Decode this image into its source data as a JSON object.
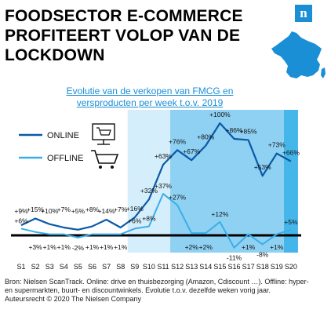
{
  "header": {
    "title_lines": [
      "FOODSECTOR E-COMMERCE",
      "PROFITEERT VOLOP VAN DE",
      "LOCKDOWN"
    ],
    "logo_letter": "n"
  },
  "footer": {
    "lines": [
      "Bron: Nielsen ScanTrack. Online: drive en thuisbezorging (Amazon, Cdiscount …). Offline: hyper-",
      "en supermarkten, buurt- en discountwinkels. Evolutie t.o.v. dezelfde weken vorig jaar.",
      "Auteursrecht © 2020 The Nielsen Company"
    ]
  },
  "chart_data": {
    "type": "line",
    "title_lines": [
      "Evolutie van de verkopen van FMCG en",
      "versproducten per week t.o.v. 2019"
    ],
    "categories": [
      "S1",
      "S2",
      "S3",
      "S4",
      "S5",
      "S6",
      "S7",
      "S8",
      "S9",
      "S10",
      "S11",
      "S12",
      "S13",
      "S14",
      "S15",
      "S16",
      "S17",
      "S18",
      "S19",
      "S20"
    ],
    "ylim": [
      -15,
      105
    ],
    "zero_line": true,
    "highlight": [
      {
        "from": "S9",
        "to": "S11",
        "color": "#d4eefb"
      },
      {
        "from": "S12",
        "to": "S19",
        "color": "#8fd1f3"
      },
      {
        "from": "S20",
        "to": "S20",
        "color": "#45b6ea"
      }
    ],
    "series": [
      {
        "name": "ONLINE",
        "color": "#0b5aa5",
        "icon": "computer-cart-icon",
        "values": [
          9,
          15,
          10,
          7,
          5,
          8,
          14,
          7,
          16,
          32,
          63,
          76,
          67,
          80,
          100,
          86,
          85,
          53,
          73,
          66
        ],
        "labels": [
          "+9%",
          "+15%",
          "+10%",
          "+7%",
          "+5%",
          "+8%",
          "+14%",
          "+7%",
          "+16%",
          "+32%",
          "+63%",
          "+76%",
          "+67%",
          "+80%",
          "+100%",
          "+86%",
          "+85%",
          "+53%",
          "+73%",
          "+66%"
        ]
      },
      {
        "name": "OFFLINE",
        "color": "#3aaee8",
        "icon": "shopping-cart-icon",
        "values": [
          6,
          3,
          1,
          1,
          -2,
          1,
          1,
          1,
          6,
          8,
          37,
          27,
          2,
          2,
          12,
          -11,
          1,
          -8,
          1,
          5
        ],
        "labels": [
          "+6%",
          "+3%",
          "+1%",
          "+1%",
          "-2%",
          "+1%",
          "+1%",
          "+1%",
          "+6%",
          "+8%",
          "+37%",
          "+27%",
          "+2%",
          "+2%",
          "+12%",
          "-11%",
          "+1%",
          "-8%",
          "+1%",
          "+5%"
        ]
      }
    ]
  }
}
